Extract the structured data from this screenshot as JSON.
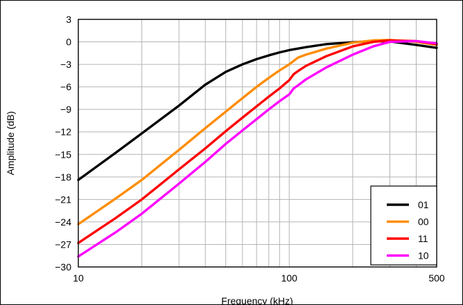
{
  "chart_data": {
    "type": "line",
    "title": "",
    "xlabel": "Frequency (kHz)",
    "ylabel": "Amplitude (dB)",
    "x_scale": "log",
    "xlim": [
      10,
      500
    ],
    "ylim": [
      -30,
      3
    ],
    "grid": true,
    "legend_position": "bottom-right",
    "x_ticks": [
      {
        "value": 10,
        "label": "10"
      },
      {
        "value": 100,
        "label": "100"
      },
      {
        "value": 500,
        "label": "500"
      }
    ],
    "y_ticks": [
      {
        "value": 3,
        "label": "3"
      },
      {
        "value": 0,
        "label": "0"
      },
      {
        "value": -3,
        "label": "−3"
      },
      {
        "value": -6,
        "label": "−6"
      },
      {
        "value": -9,
        "label": "−9"
      },
      {
        "value": -12,
        "label": "−12"
      },
      {
        "value": -15,
        "label": "−15"
      },
      {
        "value": -18,
        "label": "−18"
      },
      {
        "value": -21,
        "label": "−21"
      },
      {
        "value": -24,
        "label": "−24"
      },
      {
        "value": -27,
        "label": "−27"
      },
      {
        "value": -30,
        "label": "−30"
      }
    ],
    "series": [
      {
        "name": "01",
        "color": "#000000",
        "points": [
          [
            10,
            -18.4
          ],
          [
            15,
            -14.8
          ],
          [
            20,
            -12.2
          ],
          [
            30,
            -8.5
          ],
          [
            40,
            -5.7
          ],
          [
            50,
            -4.0
          ],
          [
            60,
            -3.0
          ],
          [
            70,
            -2.3
          ],
          [
            80,
            -1.8
          ],
          [
            90,
            -1.4
          ],
          [
            100,
            -1.1
          ],
          [
            120,
            -0.7
          ],
          [
            150,
            -0.3
          ],
          [
            200,
            -0.05
          ],
          [
            250,
            0.1
          ],
          [
            300,
            0.05
          ],
          [
            400,
            -0.4
          ],
          [
            500,
            -0.8
          ]
        ]
      },
      {
        "name": "00",
        "color": "#ff8c00",
        "points": [
          [
            10,
            -24.3
          ],
          [
            15,
            -20.9
          ],
          [
            20,
            -18.4
          ],
          [
            30,
            -14.4
          ],
          [
            40,
            -11.5
          ],
          [
            50,
            -9.3
          ],
          [
            60,
            -7.5
          ],
          [
            70,
            -6.0
          ],
          [
            80,
            -4.8
          ],
          [
            90,
            -3.8
          ],
          [
            100,
            -3.0
          ],
          [
            110,
            -2.1
          ],
          [
            120,
            -1.7
          ],
          [
            150,
            -0.9
          ],
          [
            200,
            -0.1
          ],
          [
            250,
            0.2
          ],
          [
            300,
            0.25
          ],
          [
            400,
            0.0
          ],
          [
            500,
            -0.4
          ]
        ]
      },
      {
        "name": "11",
        "color": "#ff0000",
        "points": [
          [
            10,
            -26.8
          ],
          [
            15,
            -23.5
          ],
          [
            20,
            -21.0
          ],
          [
            30,
            -17.0
          ],
          [
            40,
            -14.2
          ],
          [
            50,
            -11.9
          ],
          [
            60,
            -10.1
          ],
          [
            70,
            -8.6
          ],
          [
            80,
            -7.3
          ],
          [
            90,
            -6.2
          ],
          [
            100,
            -5.1
          ],
          [
            105,
            -4.3
          ],
          [
            110,
            -3.9
          ],
          [
            120,
            -3.2
          ],
          [
            150,
            -1.9
          ],
          [
            200,
            -0.6
          ],
          [
            250,
            0.0
          ],
          [
            300,
            0.2
          ],
          [
            400,
            0.1
          ],
          [
            500,
            -0.3
          ]
        ]
      },
      {
        "name": "10",
        "color": "#ff00ff",
        "points": [
          [
            10,
            -28.6
          ],
          [
            15,
            -25.4
          ],
          [
            20,
            -22.9
          ],
          [
            30,
            -18.9
          ],
          [
            40,
            -16.0
          ],
          [
            50,
            -13.6
          ],
          [
            60,
            -11.8
          ],
          [
            70,
            -10.3
          ],
          [
            80,
            -9.0
          ],
          [
            90,
            -7.9
          ],
          [
            100,
            -7.0
          ],
          [
            105,
            -6.2
          ],
          [
            110,
            -5.8
          ],
          [
            120,
            -5.0
          ],
          [
            150,
            -3.4
          ],
          [
            200,
            -1.7
          ],
          [
            250,
            -0.6
          ],
          [
            300,
            0.0
          ],
          [
            400,
            0.1
          ],
          [
            500,
            -0.2
          ]
        ]
      }
    ]
  }
}
